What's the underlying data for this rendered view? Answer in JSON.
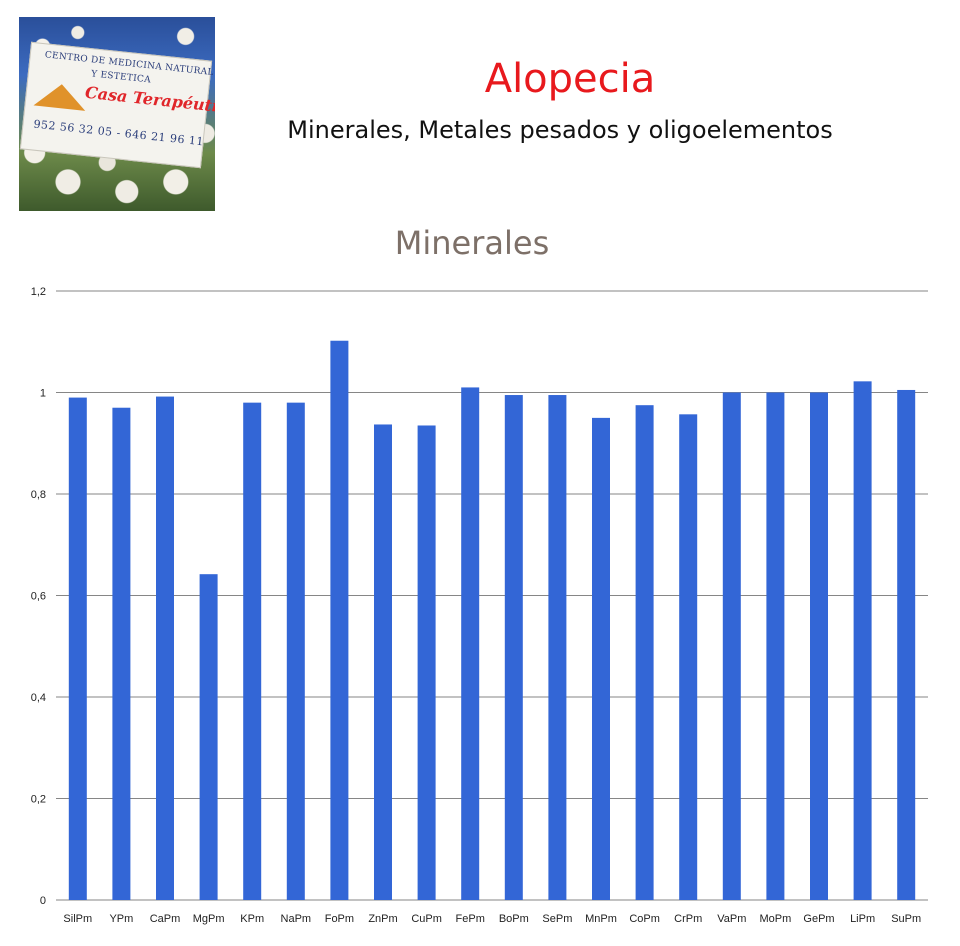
{
  "logo": {
    "line1": "CENTRO DE MEDICINA NATURAL",
    "line2": "Y ESTETICA",
    "brand": "Casa Terapéutica",
    "phone": "952 56 32 05 - 646 21 96 11"
  },
  "header": {
    "title": "Alopecia",
    "subtitle": "Minerales, Metales pesados y oligoelementos"
  },
  "colors": {
    "title": "#e8191d",
    "bar": "#3366d6",
    "grid": "#868686",
    "chart_title": "#7d7068"
  },
  "chart_data": {
    "type": "bar",
    "title": "Minerales",
    "xlabel": "",
    "ylabel": "",
    "ylim": [
      0,
      1.2
    ],
    "yticks": [
      "0",
      "0,2",
      "0,4",
      "0,6",
      "0,8",
      "1",
      "1,2"
    ],
    "grid": true,
    "legend": "none",
    "categories": [
      "SilPm",
      "YPm",
      "CaPm",
      "MgPm",
      "KPm",
      "NaPm",
      "FoPm",
      "ZnPm",
      "CuPm",
      "FePm",
      "BoPm",
      "SePm",
      "MnPm",
      "CoPm",
      "CrPm",
      "VaPm",
      "MoPm",
      "GePm",
      "LiPm",
      "SuPm"
    ],
    "values": [
      0.99,
      0.97,
      0.992,
      0.642,
      0.98,
      0.98,
      1.102,
      0.937,
      0.935,
      1.01,
      0.995,
      0.995,
      0.95,
      0.975,
      0.957,
      1.0,
      1.0,
      1.0,
      1.022,
      1.005
    ]
  }
}
